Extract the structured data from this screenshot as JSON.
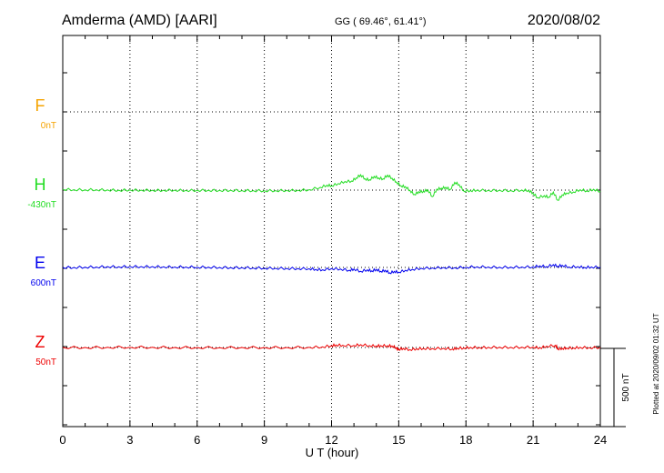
{
  "header": {
    "station": "Amderma (AMD)  [AARI]",
    "coords": "GG ( 69.46°,  61.41°)",
    "date": "2020/08/02"
  },
  "footer": {
    "plotted": "Plotted at 2020/09/02 01:32 UT",
    "scale_label": "500 nT"
  },
  "chart_data": {
    "type": "line",
    "xlabel": "U T (hour)",
    "xlim": [
      0,
      24
    ],
    "xticks": [
      "0",
      "3",
      "6",
      "9",
      "12",
      "15",
      "18",
      "21",
      "24"
    ],
    "grid": true,
    "scale_bar_nT": 500,
    "series": [
      {
        "name": "F",
        "offset_label": "0nT",
        "color": "#f5a300",
        "values": []
      },
      {
        "name": "H",
        "offset_label": "-430nT",
        "color": "#22dd22",
        "x": [
          0,
          0.5,
          1,
          1.5,
          2,
          2.5,
          3,
          3.5,
          4,
          4.5,
          5,
          5.5,
          6,
          6.5,
          7,
          7.5,
          8,
          8.5,
          9,
          9.5,
          10,
          10.5,
          11,
          11.5,
          11.8,
          12,
          12.3,
          12.6,
          12.9,
          13.1,
          13.3,
          13.5,
          13.7,
          13.9,
          14.1,
          14.3,
          14.5,
          14.7,
          14.9,
          15.1,
          15.3,
          15.5,
          15.7,
          15.9,
          16.1,
          16.3,
          16.5,
          16.7,
          16.9,
          17.1,
          17.3,
          17.5,
          17.7,
          17.9,
          18.2,
          18.5,
          19,
          19.5,
          20,
          20.5,
          20.8,
          21,
          21.2,
          21.5,
          21.7,
          21.9,
          22.1,
          22.3,
          22.5,
          22.8,
          23.1,
          23.4,
          23.7,
          24
        ],
        "values": [
          5,
          3,
          2,
          3,
          1,
          -1,
          1,
          0,
          -1,
          -1,
          0,
          -2,
          -1,
          -1,
          -2,
          -1,
          -3,
          -3,
          -4,
          -3,
          -2,
          -1,
          3,
          18,
          32,
          28,
          42,
          55,
          58,
          78,
          98,
          72,
          66,
          88,
          78,
          72,
          96,
          76,
          52,
          28,
          22,
          -2,
          -28,
          -10,
          -8,
          2,
          -42,
          6,
          12,
          18,
          4,
          50,
          35,
          -5,
          -3,
          0,
          -2,
          -1,
          -3,
          0,
          -2,
          -20,
          -48,
          -35,
          -45,
          -12,
          -65,
          -30,
          -18,
          -12,
          3,
          -5,
          5,
          -8
        ]
      },
      {
        "name": "E",
        "offset_label": "600nT",
        "color": "#0000ee",
        "x": [
          0,
          0.5,
          1,
          1.5,
          2,
          2.5,
          3,
          3.5,
          4,
          4.5,
          5,
          5.5,
          6,
          6.5,
          7,
          7.5,
          8,
          8.5,
          9,
          9.5,
          10,
          10.5,
          11,
          11.3,
          11.6,
          12,
          12.4,
          12.8,
          13,
          13.3,
          13.6,
          13.8,
          14,
          14.2,
          14.4,
          14.6,
          14.8,
          15,
          15.3,
          15.6,
          16,
          16.5,
          17,
          17.5,
          18,
          18.5,
          19,
          19.5,
          20,
          20.5,
          21,
          21.3,
          21.6,
          21.9,
          22.1,
          22.3,
          22.6,
          23,
          23.3,
          23.6,
          24
        ],
        "values": [
          0,
          0,
          2,
          3,
          5,
          4,
          6,
          5,
          5,
          4,
          3,
          3,
          2,
          2,
          0,
          -1,
          -1,
          -3,
          -4,
          -5,
          -6,
          -7,
          -8,
          -12,
          -15,
          -7,
          -10,
          -18,
          -10,
          -25,
          -15,
          -22,
          -12,
          -25,
          -18,
          -35,
          -25,
          -30,
          -18,
          -12,
          -5,
          -3,
          0,
          -2,
          2,
          4,
          3,
          1,
          2,
          3,
          4,
          10,
          5,
          18,
          8,
          14,
          3,
          5,
          0,
          3,
          2
        ]
      },
      {
        "name": "Z",
        "offset_label": "50nT",
        "color": "#ee0000",
        "x": [
          0,
          1,
          2,
          3,
          4,
          5,
          6,
          7,
          8,
          9,
          10,
          11,
          11.6,
          12,
          12.2,
          12.5,
          13,
          13.3,
          13.7,
          14,
          14.2,
          14.5,
          14.7,
          14.9,
          15,
          15.2,
          15.5,
          15.8,
          16.1,
          16.5,
          17,
          17.4,
          17.6,
          17.9,
          18.2,
          18.6,
          19,
          19.5,
          20,
          20.5,
          21,
          21.3,
          21.6,
          22,
          22.1,
          22.3,
          22.5,
          22.8,
          23.1,
          23.5,
          24
        ],
        "values": [
          0,
          0,
          1,
          2,
          1,
          0,
          0,
          -1,
          0,
          0,
          0,
          1,
          4,
          12,
          16,
          14,
          13,
          18,
          12,
          10,
          12,
          11,
          10,
          -2,
          -12,
          -5,
          -14,
          -8,
          -6,
          -7,
          -5,
          -10,
          -4,
          -3,
          1,
          0,
          1,
          2,
          1,
          2,
          3,
          -2,
          8,
          14,
          -8,
          -6,
          -3,
          -3,
          1,
          -1,
          0
        ]
      }
    ]
  }
}
